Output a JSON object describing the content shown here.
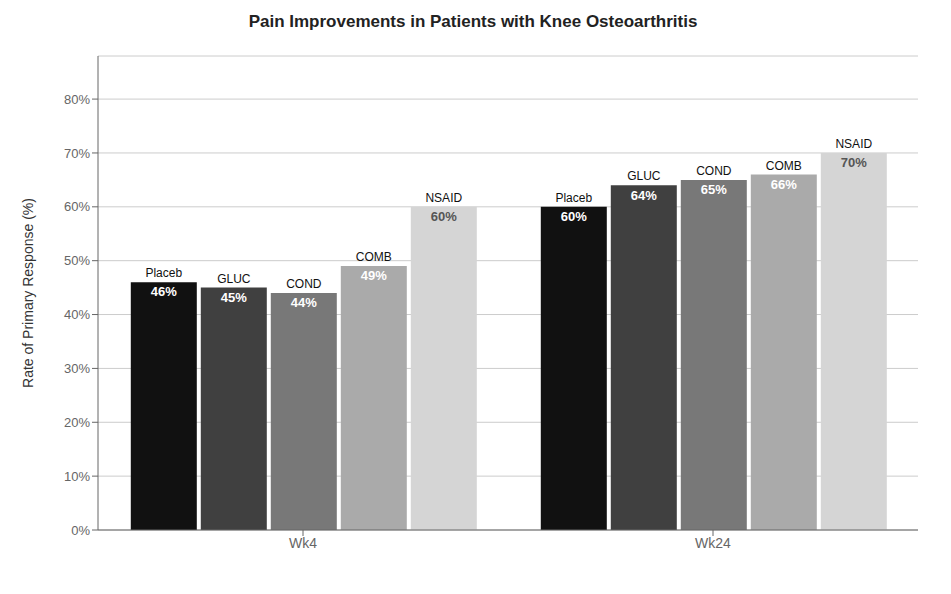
{
  "chart_data": {
    "type": "bar",
    "title": "Pain Improvements in Patients with Knee Osteoarthritis",
    "ylabel": "Rate of Primary Response (%)",
    "categories": [
      "Wk4",
      "Wk24"
    ],
    "series": [
      {
        "name": "Placeb",
        "color": "#111111",
        "values": [
          46,
          60
        ],
        "value_labels": [
          "46%",
          "60%"
        ]
      },
      {
        "name": "GLUC",
        "color": "#404040",
        "values": [
          45,
          64
        ],
        "value_labels": [
          "45%",
          "64%"
        ]
      },
      {
        "name": "COND",
        "color": "#787878",
        "values": [
          44,
          65
        ],
        "value_labels": [
          "44%",
          "65%"
        ]
      },
      {
        "name": "COMB",
        "color": "#aaaaaa",
        "values": [
          49,
          66
        ],
        "value_labels": [
          "49%",
          "66%"
        ]
      },
      {
        "name": "NSAID",
        "color": "#d5d5d5",
        "values": [
          60,
          70
        ],
        "value_labels": [
          "60%",
          "70%"
        ]
      }
    ],
    "ylim": [
      0,
      88
    ],
    "yticks": [
      {
        "value": 0,
        "label": "0%"
      },
      {
        "value": 10,
        "label": "10%"
      },
      {
        "value": 20,
        "label": "20%"
      },
      {
        "value": 30,
        "label": "30%"
      },
      {
        "value": 40,
        "label": "40%"
      },
      {
        "value": 50,
        "label": "50%"
      },
      {
        "value": 60,
        "label": "60%"
      },
      {
        "value": 70,
        "label": "70%"
      },
      {
        "value": 80,
        "label": "80%"
      }
    ],
    "grid": true,
    "data_labels": true
  }
}
